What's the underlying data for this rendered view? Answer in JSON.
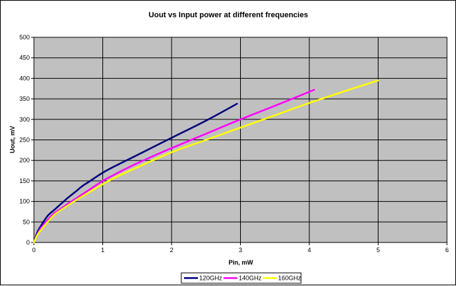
{
  "chart_data": {
    "type": "line",
    "title": "Uout vs Input power at different frequencies",
    "xlabel": "Pin, mW",
    "ylabel": "Uout, mV",
    "xlim": [
      0,
      6
    ],
    "ylim": [
      0,
      500
    ],
    "xticks": [
      0,
      1,
      2,
      3,
      4,
      5,
      6
    ],
    "yticks": [
      0,
      50,
      100,
      150,
      200,
      250,
      300,
      350,
      400,
      450,
      500
    ],
    "grid": true,
    "plot_background": "#c0c0c0",
    "legend_position": "bottom",
    "series": [
      {
        "name": "120GHz",
        "color": "#000080",
        "x": [
          0,
          0.05,
          0.1,
          0.2,
          0.3,
          0.4,
          0.5,
          0.6,
          0.7,
          0.8,
          1.0,
          1.2,
          1.5,
          2.0,
          2.5,
          2.95
        ],
        "y": [
          0,
          25,
          40,
          65,
          80,
          95,
          110,
          123,
          137,
          148,
          170,
          188,
          213,
          255,
          297,
          338
        ]
      },
      {
        "name": "140GHz",
        "color": "#ff00ff",
        "x": [
          0,
          0.05,
          0.1,
          0.2,
          0.3,
          0.4,
          0.5,
          0.6,
          0.7,
          0.8,
          1.0,
          1.2,
          1.5,
          2.0,
          2.5,
          3.0,
          3.5,
          4.07
        ],
        "y": [
          0,
          20,
          35,
          55,
          72,
          83,
          95,
          106,
          117,
          128,
          150,
          168,
          193,
          230,
          265,
          300,
          333,
          372
        ]
      },
      {
        "name": "160GHz",
        "color": "#ffff00",
        "x": [
          0,
          0.05,
          0.1,
          0.2,
          0.3,
          0.4,
          0.5,
          0.6,
          0.7,
          0.8,
          1.0,
          1.2,
          1.5,
          2.0,
          2.5,
          3.0,
          3.5,
          4.0,
          4.5,
          5.0
        ],
        "y": [
          0,
          18,
          30,
          50,
          68,
          80,
          91,
          102,
          112,
          122,
          142,
          160,
          183,
          220,
          250,
          280,
          310,
          340,
          368,
          395
        ]
      }
    ]
  }
}
